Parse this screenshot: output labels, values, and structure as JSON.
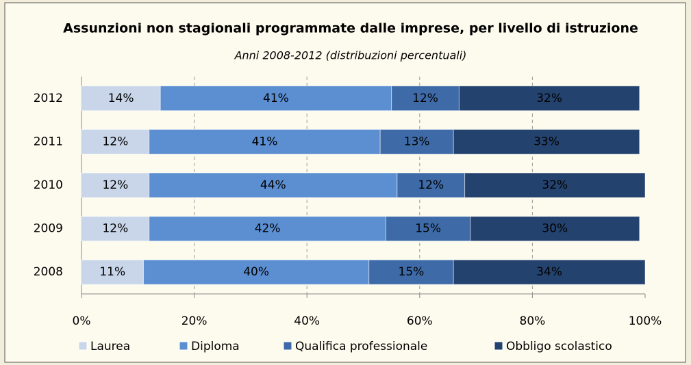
{
  "chart_data": {
    "type": "stacked_bar_horizontal",
    "title": "Assunzioni non stagionali programmate dalle imprese, per livello di istruzione",
    "subtitle": "Anni 2008-2012 (distribuzioni percentuali)",
    "categories": [
      "2012",
      "2011",
      "2010",
      "2009",
      "2008"
    ],
    "series": [
      {
        "name": "Laurea",
        "color": "#c9d6ea",
        "values": [
          14,
          12,
          12,
          12,
          11
        ],
        "value_labels": [
          "14%",
          "12%",
          "12%",
          "12%",
          "11%"
        ]
      },
      {
        "name": "Diploma",
        "color": "#5b8fd2",
        "values": [
          41,
          41,
          44,
          42,
          40
        ],
        "value_labels": [
          "41%",
          "41%",
          "44%",
          "42%",
          "40%"
        ]
      },
      {
        "name": "Qualifica professionale",
        "color": "#3e6ba8",
        "values": [
          12,
          13,
          12,
          15,
          15
        ],
        "value_labels": [
          "12%",
          "13%",
          "12%",
          "15%",
          "15%"
        ]
      },
      {
        "name": "Obbligo scolastico",
        "color": "#24426e",
        "values": [
          32,
          33,
          32,
          30,
          34
        ],
        "value_labels": [
          "32%",
          "33%",
          "32%",
          "30%",
          "34%"
        ]
      }
    ],
    "xlim": [
      0,
      100
    ],
    "xticks": [
      {
        "value": 0,
        "label": "0%"
      },
      {
        "value": 20,
        "label": "20%"
      },
      {
        "value": 40,
        "label": "40%"
      },
      {
        "value": 60,
        "label": "60%"
      },
      {
        "value": 80,
        "label": "80%"
      },
      {
        "value": 100,
        "label": "100%"
      }
    ],
    "grid": true,
    "legend": "bottom"
  }
}
